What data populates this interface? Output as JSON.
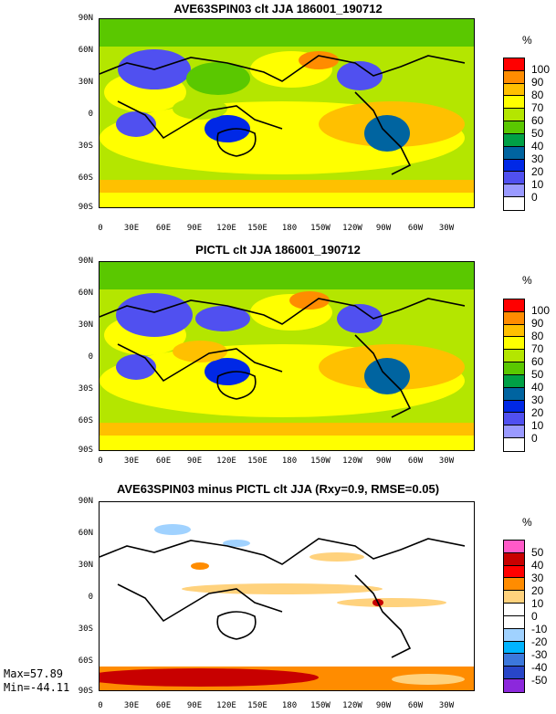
{
  "panels": [
    {
      "title": "AVE63SPIN03 clt JJA 186001_190712",
      "unit": "%",
      "levels": [
        "100",
        "90",
        "80",
        "70",
        "60",
        "50",
        "40",
        "30",
        "20",
        "10",
        "0"
      ],
      "colors": [
        "#ff0000",
        "#ff8c00",
        "#ffc000",
        "#ffff00",
        "#b4e600",
        "#5ac800",
        "#00a046",
        "#0064a0",
        "#0028e6",
        "#5050f0",
        "#9a9aff",
        "#ffffff"
      ]
    },
    {
      "title": "PICTL clt JJA 186001_190712",
      "unit": "%",
      "levels": [
        "100",
        "90",
        "80",
        "70",
        "60",
        "50",
        "40",
        "30",
        "20",
        "10",
        "0"
      ],
      "colors": [
        "#ff0000",
        "#ff8c00",
        "#ffc000",
        "#ffff00",
        "#b4e600",
        "#5ac800",
        "#00a046",
        "#0064a0",
        "#0028e6",
        "#5050f0",
        "#9a9aff",
        "#ffffff"
      ]
    },
    {
      "title": "AVE63SPIN03 minus PICTL clt JJA (Rxy=0.9, RMSE=0.05)",
      "unit": "%",
      "levels": [
        "50",
        "40",
        "30",
        "20",
        "10",
        "0",
        "-10",
        "-20",
        "-30",
        "-40",
        "-50"
      ],
      "colors": [
        "#ff5ac8",
        "#c80000",
        "#ff0000",
        "#ff8c00",
        "#ffd27d",
        "#ffffff",
        "#ffffff",
        "#a0d2ff",
        "#00b4ff",
        "#3c78dc",
        "#2846c8",
        "#8c28dc"
      ]
    }
  ],
  "lat_labels": [
    "90N",
    "60N",
    "30N",
    "0",
    "30S",
    "60S",
    "90S"
  ],
  "lon_labels": [
    "0",
    "30E",
    "60E",
    "90E",
    "120E",
    "150E",
    "180",
    "150W",
    "120W",
    "90W",
    "60W",
    "30W"
  ],
  "stats": {
    "max": "Max=57.89",
    "min": "Min=-44.11"
  }
}
